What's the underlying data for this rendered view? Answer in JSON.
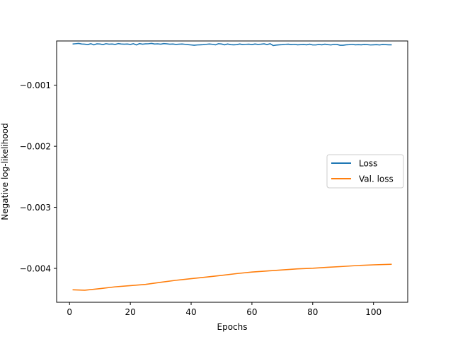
{
  "chart_data": {
    "type": "line",
    "title": "",
    "xlabel": "Epochs",
    "ylabel": "Negative log-likelihood",
    "xlim": [
      -4.25,
      111.25
    ],
    "ylim": [
      -0.004555,
      -0.000275
    ],
    "xticks": [
      0,
      20,
      40,
      60,
      80,
      100
    ],
    "xtick_labels": [
      "0",
      "20",
      "40",
      "60",
      "80",
      "100"
    ],
    "yticks": [
      -0.001,
      -0.002,
      -0.003,
      -0.004
    ],
    "ytick_labels": [
      "−0.001",
      "−0.002",
      "−0.003",
      "−0.004"
    ],
    "grid": false,
    "legend": {
      "position": "center-right"
    },
    "series": [
      {
        "name": "Loss",
        "color": "#1f77b4",
        "x": [
          1,
          2,
          3,
          4,
          5,
          6,
          7,
          8,
          9,
          10,
          11,
          12,
          13,
          14,
          15,
          16,
          17,
          18,
          19,
          20,
          21,
          22,
          23,
          24,
          25,
          26,
          27,
          28,
          29,
          30,
          31,
          32,
          33,
          34,
          35,
          36,
          37,
          38,
          39,
          40,
          41,
          42,
          43,
          44,
          45,
          46,
          47,
          48,
          49,
          50,
          51,
          52,
          53,
          54,
          55,
          56,
          57,
          58,
          59,
          60,
          61,
          62,
          63,
          64,
          65,
          66,
          67,
          68,
          69,
          70,
          71,
          72,
          73,
          74,
          75,
          76,
          77,
          78,
          79,
          80,
          81,
          82,
          83,
          84,
          85,
          86,
          87,
          88,
          89,
          90,
          91,
          92,
          93,
          94,
          95,
          96,
          97,
          98,
          99,
          100,
          101,
          102,
          103,
          104,
          105,
          106
        ],
        "y": [
          -0.000325,
          -0.00032,
          -0.000315,
          -0.000325,
          -0.000328,
          -0.000335,
          -0.00032,
          -0.000338,
          -0.000322,
          -0.000325,
          -0.000335,
          -0.00032,
          -0.000328,
          -0.000325,
          -0.000332,
          -0.000318,
          -0.000325,
          -0.000328,
          -0.000325,
          -0.000332,
          -0.00032,
          -0.00034,
          -0.000318,
          -0.000328,
          -0.000322,
          -0.00032,
          -0.000315,
          -0.000325,
          -0.000322,
          -0.000328,
          -0.000318,
          -0.000322,
          -0.000328,
          -0.000325,
          -0.000332,
          -0.000328,
          -0.000325,
          -0.00033,
          -0.000335,
          -0.00034,
          -0.000345,
          -0.00034,
          -0.000338,
          -0.000335,
          -0.00033,
          -0.000325,
          -0.00033,
          -0.000338,
          -0.00032,
          -0.000325,
          -0.000338,
          -0.000325,
          -0.000335,
          -0.000338,
          -0.000335,
          -0.000325,
          -0.000335,
          -0.00033,
          -0.000328,
          -0.000335,
          -0.000325,
          -0.000332,
          -0.000328,
          -0.000322,
          -0.000335,
          -0.00032,
          -0.00035,
          -0.000342,
          -0.000338,
          -0.000335,
          -0.00033,
          -0.000328,
          -0.000335,
          -0.00033,
          -0.000338,
          -0.000335,
          -0.000332,
          -0.000338,
          -0.000328,
          -0.00034,
          -0.00034,
          -0.000332,
          -0.000338,
          -0.000328,
          -0.000335,
          -0.00034,
          -0.00033,
          -0.000332,
          -0.000345,
          -0.000345,
          -0.000338,
          -0.000335,
          -0.00033,
          -0.000338,
          -0.000335,
          -0.000338,
          -0.000332,
          -0.000335,
          -0.00034,
          -0.000338,
          -0.000335,
          -0.00034,
          -0.000332,
          -0.000335,
          -0.000338,
          -0.000338
        ]
      },
      {
        "name": "Val. loss",
        "color": "#ff7f0e",
        "x": [
          1,
          5,
          10,
          15,
          20,
          25,
          30,
          35,
          40,
          45,
          50,
          55,
          60,
          65,
          70,
          75,
          80,
          85,
          90,
          95,
          100,
          106
        ],
        "y": [
          -0.00435,
          -0.004358,
          -0.004332,
          -0.004302,
          -0.004282,
          -0.004262,
          -0.004228,
          -0.004195,
          -0.004168,
          -0.004142,
          -0.004115,
          -0.004085,
          -0.00406,
          -0.004042,
          -0.004025,
          -0.004008,
          -0.003998,
          -0.003982,
          -0.003968,
          -0.003952,
          -0.003942,
          -0.003932
        ]
      }
    ]
  }
}
